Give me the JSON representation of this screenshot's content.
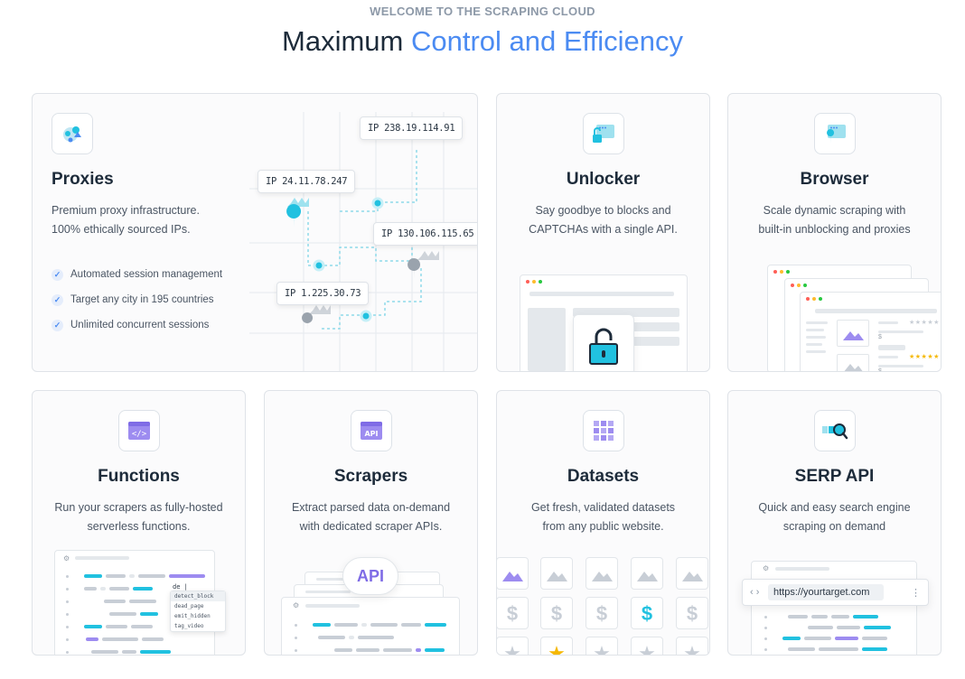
{
  "header": {
    "eyebrow": "WELCOME TO THE SCRAPING CLOUD",
    "headline_plain": "Maximum",
    "headline_accent": "Control and Efficiency"
  },
  "colors": {
    "accent": "#4b8bf2",
    "cyan": "#21c1e0",
    "purple": "#9d8cf0",
    "text": "#1d2b3a"
  },
  "proxies": {
    "icon": "proxy-globe-icon",
    "title": "Proxies",
    "desc_1": "Premium proxy infrastructure.",
    "desc_2": "100% ethically sourced IPs.",
    "features": [
      "Automated session management",
      "Target any city in 195 countries",
      "Unlimited concurrent sessions"
    ],
    "ips": [
      "IP 238.19.114.91",
      "IP 24.11.78.247",
      "IP 130.106.115.65",
      "IP 1.225.30.73"
    ]
  },
  "unlocker": {
    "icon": "unlock-window-icon",
    "title": "Unlocker",
    "desc_1": "Say goodbye to blocks and",
    "desc_2": "CAPTCHAs with a single API."
  },
  "browser": {
    "icon": "browser-pin-icon",
    "title": "Browser",
    "desc_1": "Scale dynamic scraping with",
    "desc_2": "built-in unblocking and proxies"
  },
  "functions": {
    "icon": "code-window-icon",
    "title": "Functions",
    "desc_1": "Run your scrapers as fully-hosted",
    "desc_2": "serverless functions.",
    "autocomplete_input": "de |",
    "autocomplete": [
      "detect_block",
      "dead_page",
      "emit_hidden",
      "tag_video"
    ]
  },
  "scrapers": {
    "icon": "api-window-icon",
    "title": "Scrapers",
    "desc_1": "Extract parsed data on-demand",
    "desc_2": "with dedicated scraper APIs.",
    "cloud_label": "API"
  },
  "datasets": {
    "icon": "grid-icon",
    "title": "Datasets",
    "desc_1": "Get fresh, validated datasets",
    "desc_2": "from any public website.",
    "dollar": "$",
    "star": "★"
  },
  "serp": {
    "icon": "search-magnifier-icon",
    "title": "SERP API",
    "desc_1": "Quick and easy search engine",
    "desc_2": "scraping on demand",
    "url": "https://yourtarget.com",
    "nav": "‹ ›",
    "menu": "⋮"
  }
}
